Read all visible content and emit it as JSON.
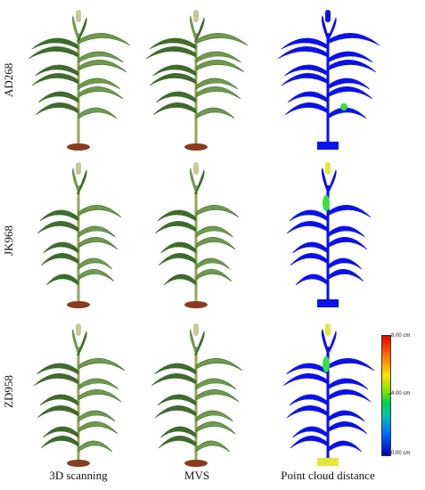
{
  "rows": [
    {
      "label": "AD268"
    },
    {
      "label": "JK968"
    },
    {
      "label": "ZD958"
    }
  ],
  "columns": [
    {
      "label": "3D scanning",
      "style": "photo"
    },
    {
      "label": "MVS",
      "style": "photo"
    },
    {
      "label": "Point cloud distance",
      "style": "distance"
    }
  ],
  "legend": {
    "max": "8.00 cm",
    "mid": "4.00 cm",
    "min": "0.00 cm"
  },
  "colors": {
    "leaf_dark": "#3f6b2c",
    "leaf_light": "#6f9a4f",
    "stem": "#93a55a",
    "tassel": "#c8c79a",
    "pot": "#8a3a1e",
    "distance_blue": "#0a12e8",
    "distance_green": "#37e03a",
    "distance_yellow": "#e6e63a"
  }
}
